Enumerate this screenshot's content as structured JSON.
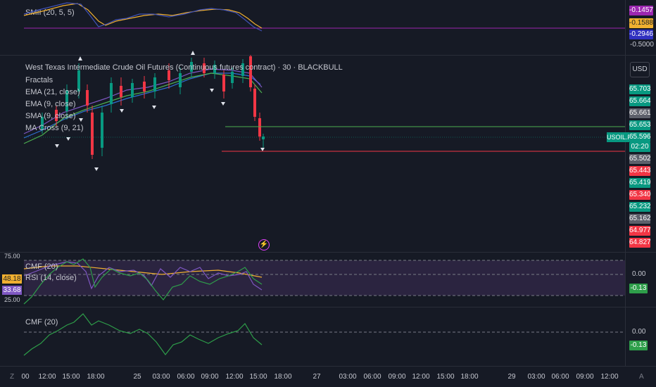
{
  "smii": {
    "label": "SMII (20, 5, 5)",
    "tags": [
      {
        "value": "-0.1457",
        "color": "#9c27b0"
      },
      {
        "value": "-0.1588",
        "color": "#f0b030"
      },
      {
        "value": "-0.2946",
        "color": "#3030c0"
      },
      {
        "value": "-0.5000",
        "color": "none"
      }
    ]
  },
  "main": {
    "title": "West Texas Intermediate Crude Oil Futures (Continuous futures contract) · 30 · BLACKBULL",
    "indicators": [
      "Fractals",
      "EMA (21, close)",
      "EMA (9, close)",
      "SMA (9, close)",
      "MA Cross (9, 21)"
    ],
    "currency_button": "USD",
    "symbol_tag": "USOIL.F",
    "countdown": "02:20",
    "alert_icon": "flash-icon",
    "price_tags": [
      {
        "value": "65.703",
        "color": "#089981"
      },
      {
        "value": "65.664",
        "color": "#089981"
      },
      {
        "value": "65.661",
        "color": "#5d606b"
      },
      {
        "value": "65.653",
        "color": "#089981"
      },
      {
        "value": "65.596",
        "color": "#089981"
      },
      {
        "value": "65.502",
        "color": "#5d606b"
      },
      {
        "value": "65.443",
        "color": "#f23645"
      },
      {
        "value": "65.419",
        "color": "#089981"
      },
      {
        "value": "65.340",
        "color": "#f23645"
      },
      {
        "value": "65.232",
        "color": "#089981"
      },
      {
        "value": "65.162",
        "color": "#5d606b"
      },
      {
        "value": "64.977",
        "color": "#f23645"
      },
      {
        "value": "64.827",
        "color": "#f23645"
      }
    ]
  },
  "rsi_pane": {
    "labels": [
      "CMF (20)",
      "RSI (14, close)"
    ],
    "left_axis": {
      "top": "75.00",
      "bottom": "25.00"
    },
    "left_tags": [
      {
        "value": "48.18",
        "color": "#f0b030"
      },
      {
        "value": "33.68",
        "color": "#7e57c2"
      }
    ],
    "right_axis": "0.00",
    "right_tag": {
      "value": "-0.13",
      "color": "#2e9e4a"
    }
  },
  "cmf_pane": {
    "label": "CMF (20)",
    "right_axis": "0.00",
    "right_tag": {
      "value": "-0.13",
      "color": "#2e9e4a"
    }
  },
  "time_axis": {
    "left_icon": "Z",
    "right_icon": "A",
    "labels": [
      "00",
      "12:00",
      "15:00",
      "18:00",
      "25",
      "03:00",
      "06:00",
      "09:00",
      "12:00",
      "15:00",
      "18:00",
      "27",
      "03:00",
      "06:00",
      "09:00",
      "12:00",
      "15:00",
      "18:00",
      "29",
      "03:00",
      "06:00",
      "09:00",
      "12:00"
    ]
  }
}
